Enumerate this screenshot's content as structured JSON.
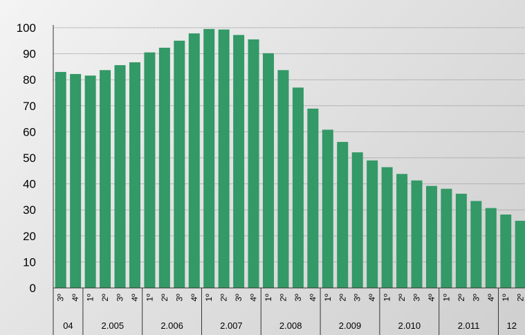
{
  "chart_data": {
    "type": "bar",
    "title": "",
    "xlabel": "",
    "ylabel": "",
    "ylim": [
      0,
      100
    ],
    "yticks": [
      0,
      10,
      20,
      30,
      40,
      50,
      60,
      70,
      80,
      90,
      100
    ],
    "grid": true,
    "bar_color": "#339966",
    "categories": [
      "3º",
      "4º",
      "1º",
      "2º",
      "3º",
      "4º",
      "1º",
      "2º",
      "3º",
      "4º",
      "1º",
      "2º",
      "3º",
      "4º",
      "1º",
      "2º",
      "3º",
      "4º",
      "1º",
      "2º",
      "3º",
      "4º",
      "1º",
      "2º",
      "3º",
      "4º",
      "1º",
      "2º",
      "3º",
      "4º",
      "1º",
      "2º"
    ],
    "values": [
      83.0,
      82.2,
      81.6,
      83.7,
      85.6,
      86.7,
      90.5,
      92.3,
      95.0,
      97.8,
      99.5,
      99.3,
      97.2,
      95.5,
      90.2,
      83.7,
      77.0,
      68.9,
      60.8,
      56.1,
      52.1,
      49.0,
      46.4,
      43.8,
      41.3,
      39.2,
      38.1,
      36.2,
      33.4,
      30.7,
      28.2,
      25.8
    ],
    "year_groups": [
      {
        "label": "04",
        "count": 2
      },
      {
        "label": "2.005",
        "count": 4
      },
      {
        "label": "2.006",
        "count": 4
      },
      {
        "label": "2.007",
        "count": 4
      },
      {
        "label": "2.008",
        "count": 4
      },
      {
        "label": "2.009",
        "count": 4
      },
      {
        "label": "2.010",
        "count": 4
      },
      {
        "label": "2.011",
        "count": 4
      },
      {
        "label": "12",
        "count": 2
      }
    ]
  }
}
